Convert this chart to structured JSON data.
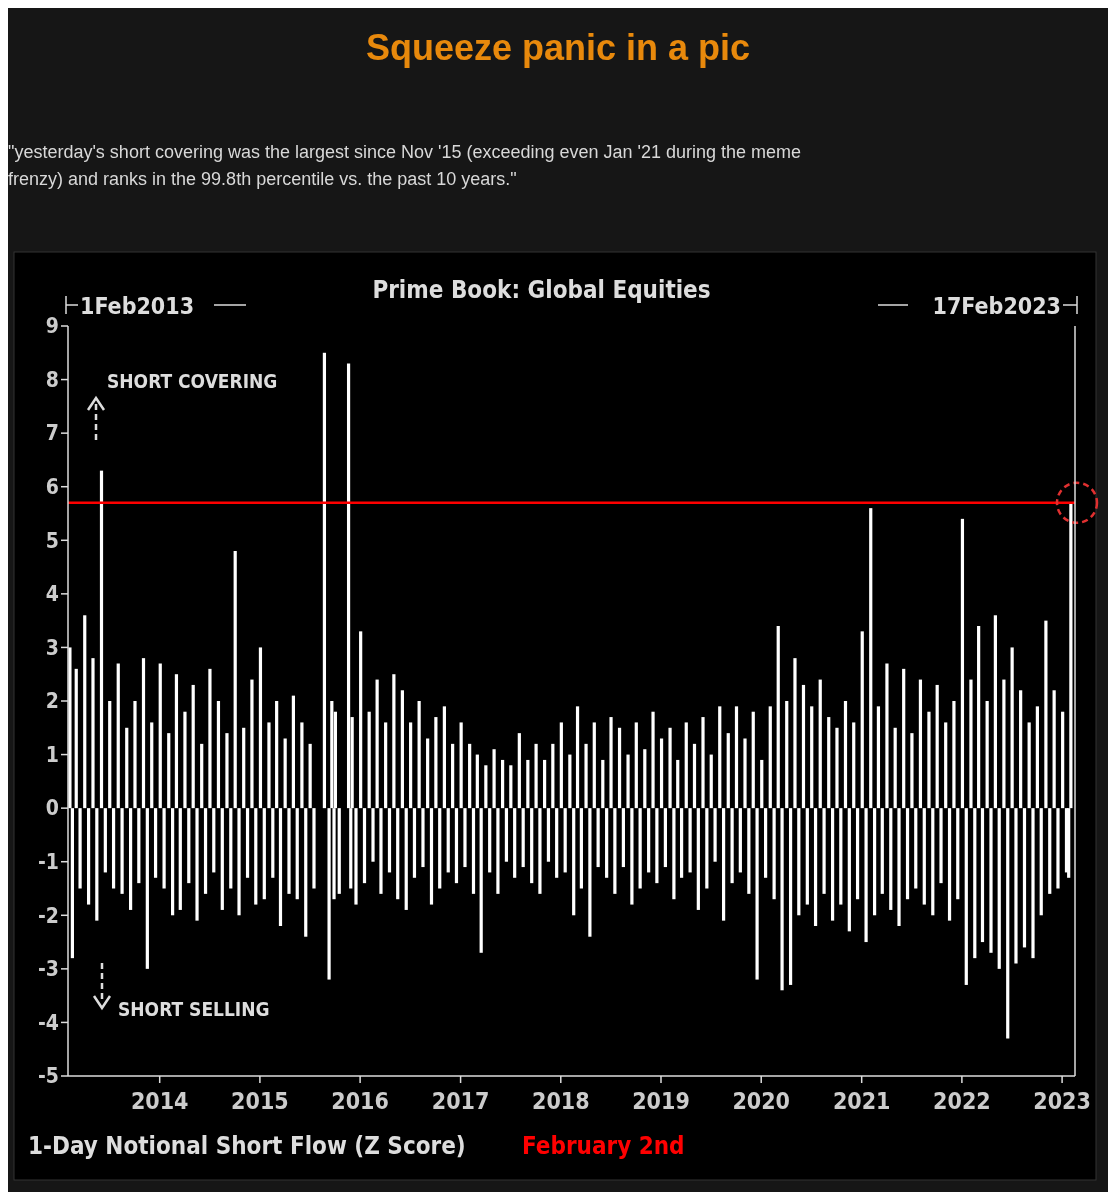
{
  "chart_data": {
    "type": "bar",
    "title": "Squeeze panic in a pic",
    "subtitle": "\"yesterday's short covering was the largest since Nov '15 (exceeding even Jan '21 during the meme frenzy) and ranks in the 99.8th percentile vs. the past 10 years.\"",
    "xlabel": "1-Day Notional Short Flow (Z Score)",
    "annotations": [
      "Prime Book: Global Equities",
      "1Feb2013",
      "17Feb2023",
      "SHORT COVERING",
      "SHORT SELLING"
    ],
    "x": [
      "2013-02-08",
      "2013-02-17",
      "2013-03-03",
      "2013-03-17",
      "2013-04-03",
      "2013-04-17",
      "2013-05-03",
      "2013-05-17",
      "2013-06-03",
      "2013-06-17",
      "2013-07-03",
      "2013-07-17",
      "2013-08-03",
      "2013-08-17",
      "2013-09-03",
      "2013-09-17",
      "2013-10-03",
      "2013-10-17",
      "2013-11-03",
      "2013-11-17",
      "2013-12-03",
      "2013-12-17",
      "2014-01-03",
      "2014-01-17",
      "2014-02-03",
      "2014-02-17",
      "2014-03-03",
      "2014-03-17",
      "2014-04-03",
      "2014-04-17",
      "2014-05-03",
      "2014-05-17",
      "2014-06-03",
      "2014-06-17",
      "2014-07-03",
      "2014-07-17",
      "2014-08-03",
      "2014-08-17",
      "2014-09-03",
      "2014-09-17",
      "2014-10-03",
      "2014-10-17",
      "2014-11-03",
      "2014-11-17",
      "2014-12-03",
      "2014-12-17",
      "2015-01-03",
      "2015-01-17",
      "2015-02-03",
      "2015-02-17",
      "2015-03-03",
      "2015-03-17",
      "2015-04-03",
      "2015-04-17",
      "2015-05-03",
      "2015-05-17",
      "2015-06-03",
      "2015-06-17",
      "2015-07-03",
      "2015-07-17",
      "2015-08-24",
      "2015-09-10",
      "2015-09-20",
      "2015-09-28",
      "2015-10-03",
      "2015-10-17",
      "2015-11-20",
      "2015-11-28",
      "2015-12-03",
      "2015-12-17",
      "2016-01-03",
      "2016-01-17",
      "2016-02-03",
      "2016-02-17",
      "2016-03-03",
      "2016-03-17",
      "2016-04-03",
      "2016-04-17",
      "2016-05-03",
      "2016-05-17",
      "2016-06-03",
      "2016-06-17",
      "2016-07-03",
      "2016-07-17",
      "2016-08-03",
      "2016-08-17",
      "2016-09-03",
      "2016-09-17",
      "2016-10-03",
      "2016-10-17",
      "2016-11-03",
      "2016-11-17",
      "2016-12-03",
      "2016-12-17",
      "2017-01-03",
      "2017-01-17",
      "2017-02-03",
      "2017-02-17",
      "2017-03-03",
      "2017-03-17",
      "2017-04-03",
      "2017-04-17",
      "2017-05-03",
      "2017-05-17",
      "2017-06-03",
      "2017-06-17",
      "2017-07-03",
      "2017-07-17",
      "2017-08-03",
      "2017-08-17",
      "2017-09-03",
      "2017-09-17",
      "2017-10-03",
      "2017-10-17",
      "2017-11-03",
      "2017-11-17",
      "2017-12-03",
      "2017-12-17",
      "2018-01-03",
      "2018-01-17",
      "2018-02-03",
      "2018-02-17",
      "2018-03-03",
      "2018-03-17",
      "2018-04-03",
      "2018-04-17",
      "2018-05-03",
      "2018-05-17",
      "2018-06-03",
      "2018-06-17",
      "2018-07-03",
      "2018-07-17",
      "2018-08-03",
      "2018-08-17",
      "2018-09-03",
      "2018-09-17",
      "2018-10-03",
      "2018-10-17",
      "2018-11-03",
      "2018-11-17",
      "2018-12-03",
      "2018-12-17",
      "2019-01-03",
      "2019-01-17",
      "2019-02-03",
      "2019-02-17",
      "2019-03-03",
      "2019-03-17",
      "2019-04-03",
      "2019-04-17",
      "2019-05-03",
      "2019-05-17",
      "2019-06-03",
      "2019-06-17",
      "2019-07-03",
      "2019-07-17",
      "2019-08-03",
      "2019-08-17",
      "2019-09-03",
      "2019-09-17",
      "2019-10-03",
      "2019-10-17",
      "2019-11-03",
      "2019-11-17",
      "2019-12-03",
      "2019-12-17",
      "2020-01-03",
      "2020-01-17",
      "2020-02-03",
      "2020-02-17",
      "2020-03-03",
      "2020-03-17",
      "2020-04-03",
      "2020-04-17",
      "2020-05-03",
      "2020-05-17",
      "2020-06-03",
      "2020-06-17",
      "2020-07-03",
      "2020-07-17",
      "2020-08-03",
      "2020-08-17",
      "2020-09-03",
      "2020-09-17",
      "2020-10-03",
      "2020-10-17",
      "2020-11-03",
      "2020-11-17",
      "2020-12-03",
      "2020-12-17",
      "2021-01-03",
      "2021-01-17",
      "2021-02-03",
      "2021-02-17",
      "2021-03-03",
      "2021-03-17",
      "2021-04-03",
      "2021-04-17",
      "2021-05-03",
      "2021-05-17",
      "2021-06-03",
      "2021-06-17",
      "2021-07-03",
      "2021-07-17",
      "2021-08-03",
      "2021-08-17",
      "2021-09-03",
      "2021-09-17",
      "2021-10-03",
      "2021-10-17",
      "2021-11-03",
      "2021-11-17",
      "2021-12-03",
      "2021-12-17",
      "2022-01-03",
      "2022-01-17",
      "2022-02-03",
      "2022-02-17",
      "2022-03-03",
      "2022-03-17",
      "2022-04-03",
      "2022-04-17",
      "2022-05-03",
      "2022-05-17",
      "2022-06-03",
      "2022-06-17",
      "2022-07-03",
      "2022-07-17",
      "2022-08-03",
      "2022-08-17",
      "2022-09-03",
      "2022-09-17",
      "2022-10-03",
      "2022-10-17",
      "2022-11-03",
      "2022-11-17",
      "2022-12-03",
      "2022-12-17",
      "2023-01-03",
      "2023-01-17",
      "2023-01-25",
      "2023-02-02"
    ],
    "values": [
      3.0,
      -2.8,
      2.6,
      -1.5,
      3.6,
      -1.8,
      2.8,
      -2.1,
      6.3,
      -1.2,
      2.0,
      -1.5,
      2.7,
      -1.6,
      1.5,
      -1.9,
      2.0,
      -1.4,
      2.8,
      -3.0,
      1.6,
      -1.3,
      2.7,
      -1.5,
      1.4,
      -2.0,
      2.5,
      -1.9,
      1.8,
      -1.4,
      2.3,
      -2.1,
      1.2,
      -1.6,
      2.6,
      -1.2,
      2.0,
      -1.9,
      1.4,
      -1.5,
      4.8,
      -2.0,
      1.5,
      -1.3,
      2.4,
      -1.8,
      3.0,
      -1.7,
      1.6,
      -1.3,
      2.0,
      -2.2,
      1.3,
      -1.6,
      2.1,
      -1.7,
      1.6,
      -2.4,
      1.2,
      -1.5,
      8.5,
      -3.2,
      2.0,
      -1.7,
      1.8,
      -1.6,
      8.3,
      -1.5,
      1.7,
      -1.8,
      3.3,
      -1.4,
      1.8,
      -1.0,
      2.4,
      -1.6,
      1.6,
      -1.2,
      2.5,
      -1.7,
      2.2,
      -1.9,
      1.6,
      -1.3,
      2.0,
      -1.1,
      1.3,
      -1.8,
      1.7,
      -1.5,
      1.9,
      -1.2,
      1.2,
      -1.4,
      1.6,
      -1.1,
      1.2,
      -1.6,
      1.0,
      -2.7,
      0.8,
      -1.2,
      1.1,
      -1.6,
      0.9,
      -1.0,
      0.8,
      -1.3,
      1.4,
      -1.1,
      0.9,
      -1.4,
      1.2,
      -1.6,
      0.9,
      -1.0,
      1.2,
      -1.3,
      1.6,
      -1.2,
      1.0,
      -2.0,
      1.9,
      -1.5,
      1.2,
      -2.4,
      1.6,
      -1.1,
      0.9,
      -1.3,
      1.7,
      -1.6,
      1.5,
      -1.1,
      1.0,
      -1.8,
      1.6,
      -1.5,
      1.1,
      -1.2,
      1.8,
      -1.4,
      1.3,
      -1.1,
      1.5,
      -1.7,
      0.9,
      -1.3,
      1.6,
      -1.2,
      1.2,
      -1.9,
      1.7,
      -1.5,
      1.0,
      -1.0,
      1.9,
      -2.1,
      1.4,
      -1.4,
      1.9,
      -1.2,
      1.3,
      -1.6,
      1.8,
      -3.2,
      0.9,
      -1.3,
      1.9,
      -1.7,
      3.4,
      -3.4,
      2.0,
      -3.3,
      2.8,
      -2.0,
      2.3,
      -1.8,
      1.9,
      -2.2,
      2.4,
      -1.6,
      1.7,
      -2.1,
      1.5,
      -1.8,
      2.0,
      -2.3,
      1.6,
      -1.7,
      3.3,
      -2.5,
      5.6,
      -2.0,
      1.9,
      -1.6,
      2.7,
      -1.9,
      1.5,
      -2.2,
      2.6,
      -1.7,
      1.4,
      -1.5,
      2.4,
      -1.8,
      1.8,
      -2.0,
      2.3,
      -1.4,
      1.6,
      -2.1,
      2.0,
      -1.7,
      5.4,
      -3.3,
      2.4,
      -2.8,
      3.4,
      -2.5,
      2.0,
      -2.7,
      3.6,
      -3.0,
      2.4,
      -4.3,
      3.0,
      -2.9,
      2.2,
      -2.6,
      1.6,
      -2.8,
      1.9,
      -2.0,
      3.5,
      -1.6,
      2.2,
      -1.5,
      1.8,
      -1.2,
      -1.3,
      5.7
    ],
    "color": "#ffffff",
    "xlim": [
      "2013-02-01",
      "2023-02-17"
    ],
    "xticks": [
      "2014",
      "2015",
      "2016",
      "2017",
      "2018",
      "2019",
      "2020",
      "2021",
      "2022",
      "2023"
    ],
    "ylim": [
      -5,
      9
    ],
    "yticks": [
      -5,
      -4,
      -3,
      -2,
      -1,
      0,
      1,
      2,
      3,
      4,
      5,
      6,
      7,
      8,
      9
    ],
    "ref_lines": [
      {
        "axis": "y",
        "value": 5.7,
        "label": "February 2nd",
        "color": "#ff0000"
      }
    ],
    "grid": false
  }
}
